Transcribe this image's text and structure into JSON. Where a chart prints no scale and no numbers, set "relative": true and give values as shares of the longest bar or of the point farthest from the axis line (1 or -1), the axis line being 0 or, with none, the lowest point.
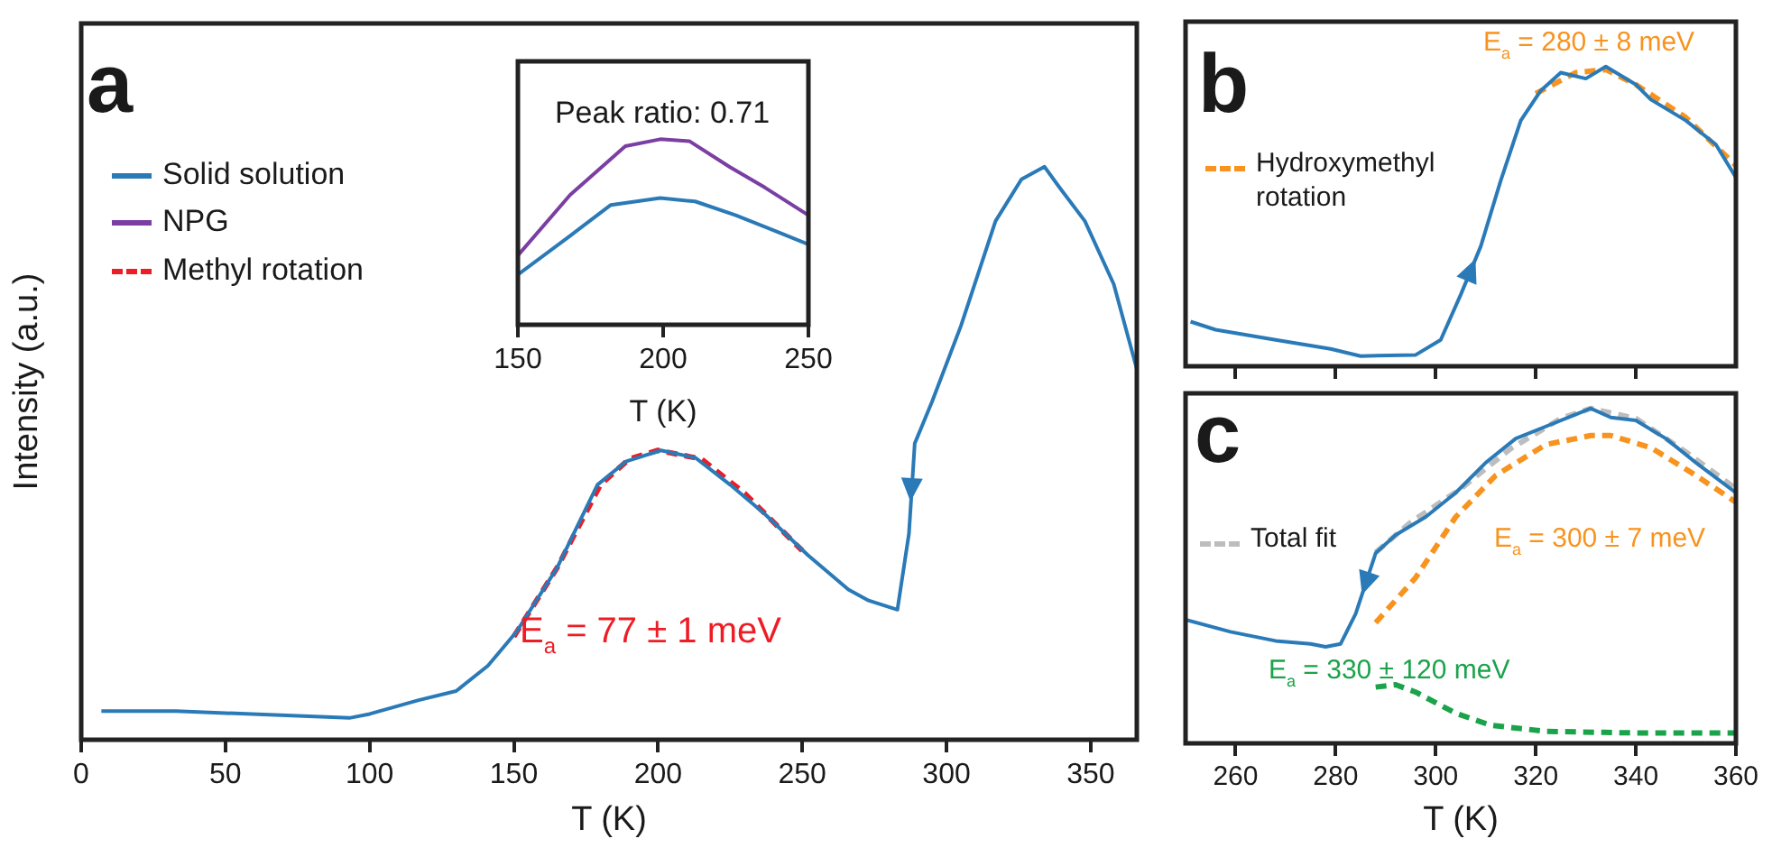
{
  "chart_data": [
    {
      "type": "line",
      "relative": true,
      "xlabel": "T (K)",
      "ylabel": "Intensity (a.u.)",
      "xlim": [
        0,
        366
      ],
      "xticks": [
        0,
        50,
        100,
        150,
        200,
        250,
        300,
        350
      ],
      "tick_labels": "x",
      "legend": "top left",
      "grid": false,
      "marker": "none",
      "annotations": [
        "a",
        "E$_{a}$ = 77 ± 1 meV"
      ],
      "series": [
        {
          "name": "Solid solution",
          "color": "#2a7ab8",
          "line_style": "solid",
          "x": [
            7,
            33,
            93,
            100,
            117,
            130,
            141,
            151,
            165,
            179,
            189,
            201,
            213,
            225,
            237,
            252,
            266,
            273,
            283,
            287,
            289,
            295,
            305,
            317,
            326,
            334,
            339,
            348,
            358,
            366
          ],
          "values": [
            0.05,
            0.05,
            0.038,
            0.045,
            0.069,
            0.085,
            0.129,
            0.189,
            0.3,
            0.445,
            0.486,
            0.505,
            0.492,
            0.445,
            0.394,
            0.322,
            0.262,
            0.243,
            0.227,
            0.36,
            0.517,
            0.59,
            0.722,
            0.905,
            0.978,
            1,
            0.965,
            0.905,
            0.795,
            0.647
          ]
        },
        {
          "name": "Methyl rotation",
          "color": "#ee1c24",
          "line_style": "dashed",
          "x": [
            150,
            165,
            180,
            190,
            200,
            215,
            230,
            250
          ],
          "values": [
            0.18,
            0.3,
            0.445,
            0.49,
            0.505,
            0.49,
            0.43,
            0.33
          ]
        }
      ]
    },
    {
      "type": "line",
      "relative": true,
      "title": "Peak ratio: 0.71",
      "xlabel": "T (K)",
      "xlim": [
        150,
        250
      ],
      "xticks": [
        150,
        200,
        250
      ],
      "tick_labels": "x",
      "grid": false,
      "marker": "none",
      "series": [
        {
          "color": "#7b3fa3",
          "line_style": "solid",
          "name": "NPG",
          "x": [
            150,
            168,
            187,
            199,
            209,
            223,
            235,
            250
          ],
          "values": [
            0.374,
            0.7,
            0.963,
            1,
            0.99,
            0.85,
            0.74,
            0.59
          ]
        },
        {
          "color": "#2a7ab8",
          "line_style": "solid",
          "x": [
            150,
            168,
            182,
            199,
            211,
            225,
            240,
            250
          ],
          "values": [
            0.27,
            0.48,
            0.646,
            0.683,
            0.665,
            0.59,
            0.497,
            0.433
          ]
        }
      ]
    },
    {
      "type": "line",
      "relative": true,
      "xlim": [
        250,
        360
      ],
      "xticks": [
        260,
        280,
        300,
        320,
        340
      ],
      "tick_labels": false,
      "legend": "left",
      "grid": false,
      "marker": "none",
      "annotations": [
        "b",
        "E$_{a}$ = 280 ± 8 meV"
      ],
      "series": [
        {
          "color": "#2a7ab8",
          "line_style": "solid",
          "x": [
            251,
            256,
            268,
            279,
            285,
            296,
            301,
            305,
            309,
            313,
            317,
            321,
            325,
            330,
            334,
            340,
            343,
            350,
            356,
            360
          ],
          "values": [
            0.149,
            0.122,
            0.088,
            0.058,
            0.034,
            0.038,
            0.088,
            0.239,
            0.4,
            0.62,
            0.82,
            0.92,
            0.98,
            0.96,
            1,
            0.94,
            0.89,
            0.82,
            0.74,
            0.63
          ]
        },
        {
          "name": "Hydroxymethyl rotation",
          "color": "#f7931e",
          "line_style": "dashed",
          "x": [
            320,
            328,
            334,
            340,
            350,
            360
          ],
          "values": [
            0.91,
            0.98,
            0.99,
            0.94,
            0.83,
            0.67
          ]
        }
      ]
    },
    {
      "type": "line",
      "relative": true,
      "xlabel": "T (K)",
      "xlim": [
        250,
        360
      ],
      "xticks": [
        260,
        280,
        300,
        320,
        340,
        360
      ],
      "tick_labels": "x",
      "legend": "left",
      "grid": false,
      "marker": "none",
      "annotations": [
        "c",
        "E$_{a}$ = 300 ± 7 meV",
        "E$_{a}$ = 330 ± 120 meV"
      ],
      "series": [
        {
          "color": "#2a7ab8",
          "line_style": "solid",
          "x": [
            250,
            259,
            268,
            275,
            278,
            281,
            284,
            288,
            292,
            298,
            304,
            310,
            316,
            322,
            328,
            331,
            335,
            340,
            346,
            352,
            360
          ],
          "values": [
            0.369,
            0.333,
            0.306,
            0.297,
            0.288,
            0.297,
            0.387,
            0.568,
            0.622,
            0.676,
            0.748,
            0.838,
            0.91,
            0.946,
            0.982,
            1,
            0.973,
            0.964,
            0.91,
            0.838,
            0.748
          ]
        },
        {
          "name": "Total fit",
          "color": "#bdbdbd",
          "line_style": "dashed",
          "x": [
            288,
            295,
            305,
            315,
            325,
            331,
            340,
            350,
            360
          ],
          "values": [
            0.57,
            0.66,
            0.76,
            0.88,
            0.97,
            1,
            0.97,
            0.87,
            0.76
          ]
        },
        {
          "color": "#f7931e",
          "line_style": "dashed",
          "x": [
            288,
            296,
            304,
            312,
            322,
            331,
            335,
            343,
            352,
            360
          ],
          "values": [
            0.36,
            0.495,
            0.676,
            0.8,
            0.892,
            0.919,
            0.919,
            0.883,
            0.8,
            0.72
          ]
        },
        {
          "color": "#1aa34a",
          "line_style": "dashed",
          "x": [
            288,
            292,
            296,
            304,
            311,
            322,
            340,
            360
          ],
          "values": [
            0.168,
            0.175,
            0.153,
            0.09,
            0.054,
            0.036,
            0.031,
            0.031
          ]
        }
      ]
    }
  ]
}
